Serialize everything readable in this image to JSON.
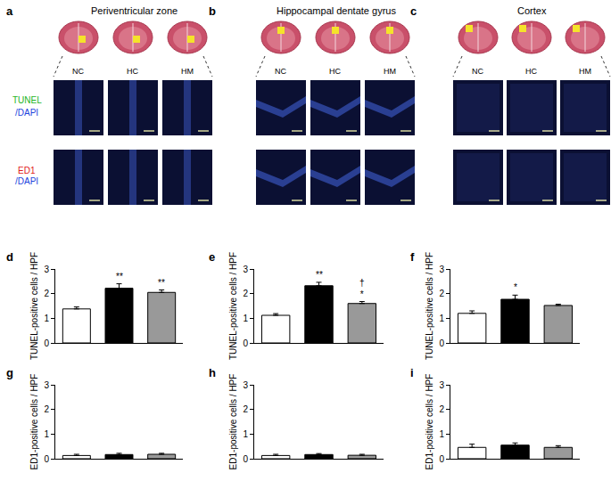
{
  "panels": [
    {
      "label": "a",
      "title": "Periventricular zone"
    },
    {
      "label": "b",
      "title": "Hippocampal dentate gyrus"
    },
    {
      "label": "c",
      "title": "Cortex"
    }
  ],
  "groups": [
    "NC",
    "HC",
    "HM"
  ],
  "stains": [
    {
      "name": "TUNEL",
      "color": "#22b422",
      "counterstain": "/DAPI",
      "counterstain_color": "#2244dd"
    },
    {
      "name": "ED1",
      "color": "#e02020",
      "counterstain": "/DAPI",
      "counterstain_color": "#2244dd"
    }
  ],
  "chart_data": [
    {
      "type": "bar",
      "panel": "d",
      "categories": [
        null,
        null,
        null
      ],
      "values": [
        1.38,
        2.22,
        2.05
      ],
      "errors": [
        0.08,
        0.18,
        0.1
      ],
      "colors": [
        "#ffffff",
        "#000000",
        "#999999"
      ],
      "ylabel": "TUNEL-positive cells / HPF",
      "ylim": [
        0,
        3
      ],
      "yticks": [
        0,
        1,
        2,
        3
      ],
      "tick_labels": "y",
      "grid": false,
      "annotations": [
        {
          "index": 1,
          "text": [
            "**"
          ]
        },
        {
          "index": 2,
          "text": [
            "**"
          ]
        }
      ]
    },
    {
      "type": "bar",
      "panel": "e",
      "categories": [
        null,
        null,
        null
      ],
      "values": [
        1.12,
        2.32,
        1.6
      ],
      "errors": [
        0.07,
        0.14,
        0.08
      ],
      "colors": [
        "#ffffff",
        "#000000",
        "#999999"
      ],
      "ylabel": "TUNEL-positive cells / HPF",
      "ylim": [
        0,
        3
      ],
      "yticks": [
        0,
        1,
        2,
        3
      ],
      "tick_labels": "y",
      "grid": false,
      "annotations": [
        {
          "index": 1,
          "text": [
            "**"
          ]
        },
        {
          "index": 2,
          "text": [
            "†",
            "*"
          ]
        }
      ]
    },
    {
      "type": "bar",
      "panel": "f",
      "categories": [
        null,
        null,
        null
      ],
      "values": [
        1.2,
        1.77,
        1.52
      ],
      "errors": [
        0.1,
        0.17,
        0.05
      ],
      "colors": [
        "#ffffff",
        "#000000",
        "#999999"
      ],
      "ylabel": "TUNEL-positive cells / HPF",
      "ylim": [
        0,
        3
      ],
      "yticks": [
        0,
        1,
        2,
        3
      ],
      "tick_labels": "y",
      "grid": false,
      "annotations": [
        {
          "index": 1,
          "text": [
            "*"
          ]
        }
      ]
    },
    {
      "type": "bar",
      "panel": "g",
      "categories": [
        null,
        null,
        null
      ],
      "values": [
        0.13,
        0.17,
        0.18
      ],
      "errors": [
        0.05,
        0.05,
        0.04
      ],
      "colors": [
        "#ffffff",
        "#000000",
        "#999999"
      ],
      "ylabel": "ED1-positive cells / HPF",
      "ylim": [
        0,
        3
      ],
      "yticks": [
        0,
        1,
        2,
        3
      ],
      "tick_labels": "y",
      "grid": false,
      "annotations": []
    },
    {
      "type": "bar",
      "panel": "h",
      "categories": [
        null,
        null,
        null
      ],
      "values": [
        0.13,
        0.17,
        0.14
      ],
      "errors": [
        0.05,
        0.04,
        0.04
      ],
      "colors": [
        "#ffffff",
        "#000000",
        "#999999"
      ],
      "ylabel": "ED1-positive cells / HPF",
      "ylim": [
        0,
        3
      ],
      "yticks": [
        0,
        1,
        2,
        3
      ],
      "tick_labels": "y",
      "grid": false,
      "annotations": []
    },
    {
      "type": "bar",
      "panel": "i",
      "categories": [
        null,
        null,
        null
      ],
      "values": [
        0.46,
        0.55,
        0.46
      ],
      "errors": [
        0.13,
        0.09,
        0.07
      ],
      "colors": [
        "#ffffff",
        "#000000",
        "#999999"
      ],
      "ylabel": "ED1-positive cells / HPF",
      "ylim": [
        0,
        3
      ],
      "yticks": [
        0,
        1,
        2,
        3
      ],
      "tick_labels": "y",
      "grid": false,
      "annotations": []
    }
  ]
}
